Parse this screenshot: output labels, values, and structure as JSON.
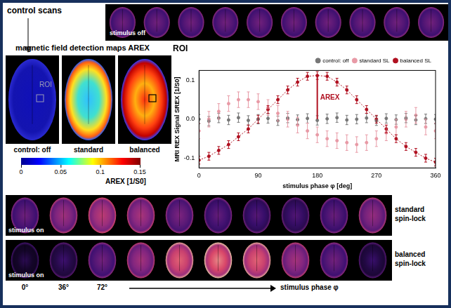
{
  "header": {
    "label": "control scans"
  },
  "top_row": {
    "label": "stimulus off"
  },
  "maps": {
    "title": "magnetic field detection maps AREX",
    "panels": [
      "control: off",
      "standard",
      "balanced"
    ],
    "roi_label": "ROI",
    "colorbar": {
      "label": "AREX [1/S0]",
      "range": [
        0,
        0.15
      ],
      "ticks": [
        0,
        0.05,
        0.1,
        0.15
      ]
    }
  },
  "bottom_rows": [
    {
      "label": "standard spin-lock",
      "sublabel": "stimulus on"
    },
    {
      "label": "balanced spin-lock",
      "sublabel": "stimulus on"
    }
  ],
  "phase_axis": {
    "labels": [
      "0°",
      "36°",
      "72°"
    ],
    "title": "stimulus phase φ"
  },
  "chart_data": {
    "type": "scatter",
    "title": "ROI",
    "x_label": "stimulus phase φ [deg]",
    "y_label": "MRI REX Signal SREX [1/S0]",
    "x": [
      0,
      15,
      30,
      45,
      60,
      75,
      90,
      105,
      120,
      135,
      150,
      165,
      180,
      195,
      210,
      225,
      240,
      255,
      270,
      285,
      300,
      315,
      330,
      345,
      360
    ],
    "series": [
      {
        "name": "control: off",
        "color": "#777777",
        "marker": "circle",
        "line_style": "none",
        "values": [
          0.0,
          -0.005,
          0.003,
          -0.002,
          0.004,
          -0.003,
          0.0,
          0.002,
          -0.004,
          0.003,
          -0.001,
          0.002,
          -0.003,
          0.001,
          0.004,
          -0.002,
          0.0,
          0.003,
          -0.004,
          0.002,
          -0.001,
          0.003,
          -0.002,
          0.001,
          0.0
        ],
        "errors": [
          0.012,
          0.012,
          0.012,
          0.012,
          0.012,
          0.012,
          0.012,
          0.012,
          0.012,
          0.012,
          0.012,
          0.012,
          0.012,
          0.012,
          0.012,
          0.012,
          0.012,
          0.012,
          0.012,
          0.012,
          0.012,
          0.012,
          0.012,
          0.012,
          0.012
        ]
      },
      {
        "name": "standard SL",
        "color": "#e89aa6",
        "marker": "circle",
        "line_style": "none",
        "values": [
          -0.03,
          0.0,
          0.02,
          0.04,
          0.05,
          0.05,
          0.045,
          0.03,
          0.015,
          0.0,
          -0.015,
          -0.03,
          -0.04,
          -0.05,
          -0.055,
          -0.06,
          -0.065,
          -0.06,
          -0.05,
          -0.035,
          -0.02,
          0.0,
          0.01,
          -0.02,
          -0.03
        ],
        "errors": [
          0.02,
          0.02,
          0.02,
          0.02,
          0.02,
          0.02,
          0.02,
          0.02,
          0.02,
          0.02,
          0.02,
          0.02,
          0.02,
          0.02,
          0.02,
          0.02,
          0.02,
          0.02,
          0.02,
          0.02,
          0.02,
          0.02,
          0.02,
          0.02,
          0.02
        ]
      },
      {
        "name": "balanced SL",
        "color": "#b01020",
        "marker": "circle",
        "line_style": "dotted",
        "values": [
          -0.105,
          -0.095,
          -0.08,
          -0.065,
          -0.045,
          -0.025,
          0.0,
          0.025,
          0.05,
          0.075,
          0.095,
          0.11,
          0.112,
          0.11,
          0.095,
          0.075,
          0.05,
          0.025,
          0.0,
          -0.025,
          -0.05,
          -0.07,
          -0.085,
          -0.1,
          -0.11
        ],
        "errors": [
          0.01,
          0.01,
          0.01,
          0.01,
          0.01,
          0.01,
          0.01,
          0.01,
          0.01,
          0.01,
          0.01,
          0.01,
          0.01,
          0.01,
          0.01,
          0.01,
          0.01,
          0.01,
          0.01,
          0.01,
          0.01,
          0.01,
          0.01,
          0.01,
          0.01
        ]
      }
    ],
    "annotations": [
      {
        "text": "AREX",
        "x": 180,
        "y": [
          0,
          0.112
        ],
        "color": "#b01020"
      }
    ],
    "xlim": [
      0,
      360
    ],
    "xticks": [
      0,
      90,
      180,
      270,
      360
    ],
    "ylim": [
      -0.125,
      0.125
    ],
    "yticks": [
      -0.1,
      {
        "value": 0,
        "label": "0.0"
      },
      0.1
    ],
    "grid": false,
    "legend": "top right"
  }
}
